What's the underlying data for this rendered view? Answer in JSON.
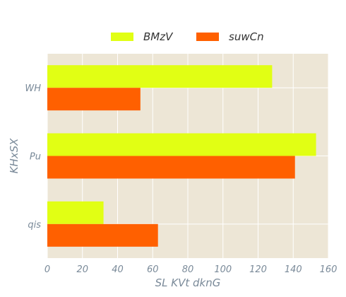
{
  "chart_data": {
    "type": "bar",
    "orientation": "horizontal",
    "categories": [
      "WH",
      "Pu",
      "qis"
    ],
    "series": [
      {
        "name": "BMzV",
        "values": [
          128,
          153,
          32
        ],
        "color": "#e1ff14"
      },
      {
        "name": "suwCn",
        "values": [
          53,
          141,
          63
        ],
        "color": "#ff6000"
      }
    ],
    "xlabel": "SL KVt  dknG",
    "ylabel": "KHxSX",
    "xlim": [
      0,
      160
    ],
    "xticks": [
      0,
      20,
      40,
      60,
      80,
      100,
      120,
      140,
      160
    ],
    "grid": true,
    "legend_position": "top-center",
    "colors": {
      "plot_background": "#ede6d6",
      "grid": "#ffffff",
      "text": "#7a8a99"
    }
  }
}
